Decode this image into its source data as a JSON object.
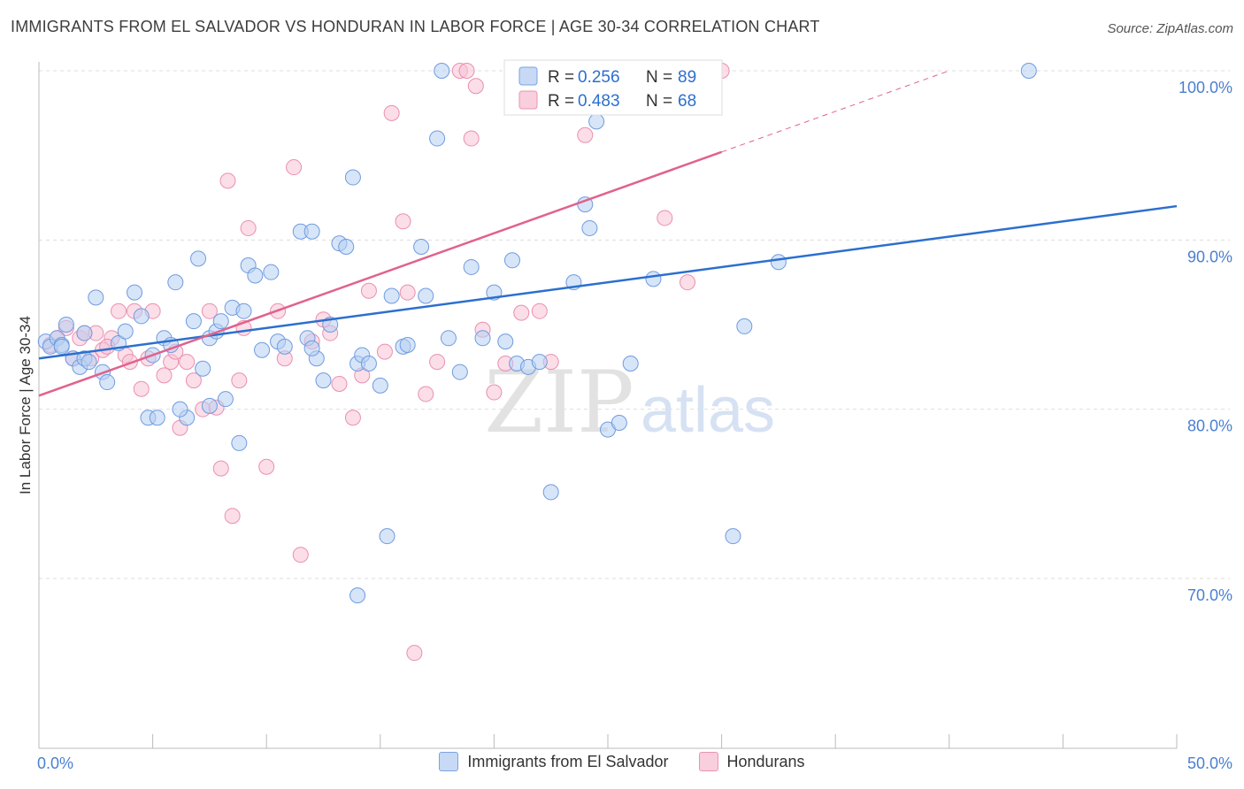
{
  "header": {
    "title": "IMMIGRANTS FROM EL SALVADOR VS HONDURAN IN LABOR FORCE | AGE 30-34 CORRELATION CHART",
    "source": "Source: ZipAtlas.com"
  },
  "watermark": {
    "zip": "ZIP",
    "atlas": "atlas"
  },
  "colors": {
    "blue_fill": "#b7cff2",
    "blue_stroke": "#6f9be0",
    "blue_line": "#2b6fcf",
    "pink_fill": "#f7c3d5",
    "pink_stroke": "#eb8fb0",
    "pink_line": "#e0628d",
    "axis_label": "#4a7fd0",
    "grid": "#dddddd"
  },
  "chart_data": {
    "type": "scatter",
    "title": "IMMIGRANTS FROM EL SALVADOR VS HONDURAN IN LABOR FORCE | AGE 30-34 CORRELATION CHART",
    "xlabel": "",
    "ylabel": "In Labor Force | Age 30-34",
    "xlim": [
      0,
      50
    ],
    "ylim": [
      60,
      102
    ],
    "x_tick_labels": [
      "0.0%",
      "50.0%"
    ],
    "y_ticks": [
      {
        "value": 100,
        "label": "100.0%"
      },
      {
        "value": 90,
        "label": "90.0%"
      },
      {
        "value": 80,
        "label": "80.0%"
      },
      {
        "value": 70,
        "label": "70.0%"
      }
    ],
    "legend": [
      {
        "series": "Immigrants from El Salvador",
        "r_label": "R = ",
        "r": "0.256",
        "n_label": "N = ",
        "n": "89"
      },
      {
        "series": "Hondurans",
        "r_label": "R = ",
        "r": "0.483",
        "n_label": "N = ",
        "n": "68"
      }
    ],
    "series": [
      {
        "name": "Immigrants from El Salvador",
        "color": "blue",
        "trend": {
          "x0": 0,
          "y0": 83.0,
          "x1": 50,
          "y1": 92.0
        },
        "points": [
          [
            0.3,
            84.0
          ],
          [
            0.5,
            83.7
          ],
          [
            0.8,
            84.2
          ],
          [
            1.0,
            83.8
          ],
          [
            1.2,
            85.0
          ],
          [
            1.5,
            83.0
          ],
          [
            1.8,
            82.5
          ],
          [
            2.0,
            83.0
          ],
          [
            2.2,
            82.8
          ],
          [
            2.5,
            86.6
          ],
          [
            2.8,
            82.2
          ],
          [
            3.0,
            81.6
          ],
          [
            3.5,
            83.9
          ],
          [
            3.8,
            84.6
          ],
          [
            4.2,
            86.9
          ],
          [
            4.5,
            85.5
          ],
          [
            4.8,
            79.5
          ],
          [
            5.0,
            83.2
          ],
          [
            5.2,
            79.5
          ],
          [
            5.5,
            84.2
          ],
          [
            5.8,
            83.8
          ],
          [
            6.0,
            87.5
          ],
          [
            6.5,
            79.5
          ],
          [
            6.2,
            80.0
          ],
          [
            6.8,
            85.2
          ],
          [
            7.0,
            88.9
          ],
          [
            7.2,
            82.4
          ],
          [
            7.5,
            84.2
          ],
          [
            7.8,
            84.6
          ],
          [
            8.0,
            85.2
          ],
          [
            7.5,
            80.2
          ],
          [
            8.2,
            80.6
          ],
          [
            8.5,
            86.0
          ],
          [
            8.8,
            78.0
          ],
          [
            9.0,
            85.8
          ],
          [
            9.2,
            88.5
          ],
          [
            9.5,
            87.9
          ],
          [
            9.8,
            83.5
          ],
          [
            10.2,
            88.1
          ],
          [
            10.5,
            84.0
          ],
          [
            10.8,
            83.7
          ],
          [
            11.5,
            90.5
          ],
          [
            12.0,
            90.5
          ],
          [
            11.8,
            84.2
          ],
          [
            12.2,
            83.0
          ],
          [
            12.5,
            81.7
          ],
          [
            12.8,
            85.0
          ],
          [
            13.2,
            89.8
          ],
          [
            13.5,
            89.6
          ],
          [
            13.8,
            93.7
          ],
          [
            14.0,
            82.7
          ],
          [
            14.2,
            83.2
          ],
          [
            14.5,
            82.7
          ],
          [
            15.0,
            81.4
          ],
          [
            15.3,
            72.5
          ],
          [
            15.5,
            86.7
          ],
          [
            16.0,
            83.7
          ],
          [
            16.2,
            83.8
          ],
          [
            16.8,
            89.6
          ],
          [
            17.0,
            86.7
          ],
          [
            17.5,
            96.0
          ],
          [
            17.7,
            100.0
          ],
          [
            18.0,
            84.2
          ],
          [
            18.5,
            82.2
          ],
          [
            19.0,
            88.4
          ],
          [
            19.5,
            84.2
          ],
          [
            20.0,
            86.9
          ],
          [
            20.5,
            84.0
          ],
          [
            20.8,
            88.8
          ],
          [
            21.0,
            82.7
          ],
          [
            21.5,
            82.5
          ],
          [
            22.0,
            82.8
          ],
          [
            22.5,
            75.1
          ],
          [
            23.5,
            87.5
          ],
          [
            24.0,
            92.1
          ],
          [
            24.2,
            90.7
          ],
          [
            24.5,
            97.0
          ],
          [
            25.0,
            78.8
          ],
          [
            25.5,
            79.2
          ],
          [
            26.0,
            82.7
          ],
          [
            27.0,
            87.7
          ],
          [
            30.5,
            72.5
          ],
          [
            31.0,
            84.9
          ],
          [
            32.5,
            88.7
          ],
          [
            43.5,
            100.0
          ],
          [
            14.0,
            69.0
          ],
          [
            2.0,
            84.5
          ],
          [
            1.0,
            83.7
          ],
          [
            12.0,
            83.6
          ]
        ]
      },
      {
        "name": "Hondurans",
        "color": "pink",
        "trend": {
          "x0": 0,
          "y0": 80.8,
          "x1": 30,
          "y1": 95.2
        },
        "trend_dash": {
          "x0": 30,
          "y0": 95.2,
          "x1": 40,
          "y1": 100.0
        },
        "points": [
          [
            0.5,
            83.8
          ],
          [
            0.8,
            84.2
          ],
          [
            1.2,
            84.8
          ],
          [
            1.5,
            83.0
          ],
          [
            1.8,
            84.2
          ],
          [
            2.0,
            84.5
          ],
          [
            2.3,
            83.0
          ],
          [
            2.5,
            84.5
          ],
          [
            2.8,
            83.5
          ],
          [
            3.2,
            84.2
          ],
          [
            3.5,
            85.8
          ],
          [
            3.8,
            83.2
          ],
          [
            4.0,
            82.8
          ],
          [
            4.2,
            85.8
          ],
          [
            4.5,
            81.2
          ],
          [
            4.8,
            83.0
          ],
          [
            5.0,
            85.8
          ],
          [
            5.5,
            82.0
          ],
          [
            5.8,
            82.8
          ],
          [
            6.2,
            78.9
          ],
          [
            6.5,
            82.8
          ],
          [
            6.8,
            81.7
          ],
          [
            7.2,
            80.0
          ],
          [
            7.5,
            85.8
          ],
          [
            7.8,
            80.1
          ],
          [
            8.0,
            76.5
          ],
          [
            8.3,
            93.5
          ],
          [
            8.5,
            73.7
          ],
          [
            8.8,
            81.7
          ],
          [
            9.0,
            84.8
          ],
          [
            9.2,
            90.7
          ],
          [
            10.0,
            76.6
          ],
          [
            10.5,
            85.8
          ],
          [
            10.8,
            83.0
          ],
          [
            11.2,
            94.3
          ],
          [
            11.5,
            71.4
          ],
          [
            12.0,
            84.0
          ],
          [
            12.5,
            85.3
          ],
          [
            12.8,
            84.5
          ],
          [
            13.2,
            81.5
          ],
          [
            13.8,
            79.5
          ],
          [
            14.2,
            82.0
          ],
          [
            14.5,
            87.0
          ],
          [
            15.2,
            83.4
          ],
          [
            15.5,
            97.5
          ],
          [
            16.0,
            91.1
          ],
          [
            16.2,
            86.9
          ],
          [
            16.5,
            65.6
          ],
          [
            17.0,
            80.9
          ],
          [
            17.5,
            82.8
          ],
          [
            18.5,
            100.0
          ],
          [
            18.8,
            100.0
          ],
          [
            19.0,
            96.0
          ],
          [
            19.2,
            99.1
          ],
          [
            19.5,
            84.7
          ],
          [
            20.0,
            81.0
          ],
          [
            20.5,
            82.7
          ],
          [
            21.2,
            85.7
          ],
          [
            22.0,
            85.8
          ],
          [
            22.5,
            82.8
          ],
          [
            23.5,
            98.5
          ],
          [
            24.0,
            96.2
          ],
          [
            24.5,
            98.4
          ],
          [
            27.5,
            91.3
          ],
          [
            28.5,
            87.5
          ],
          [
            30.0,
            100.0
          ],
          [
            3.0,
            83.7
          ],
          [
            6.0,
            83.4
          ]
        ]
      }
    ]
  },
  "bottom_legend": {
    "blue_label": "Immigrants from El Salvador",
    "pink_label": "Hondurans"
  }
}
